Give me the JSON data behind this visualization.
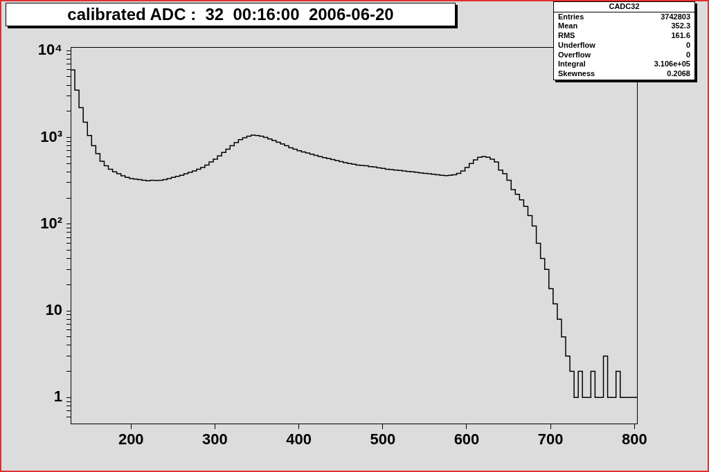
{
  "chart_data": {
    "type": "step",
    "title": "calibrated ADC :  32  00:16:00  2006-06-20",
    "x": [
      128,
      133,
      138,
      143,
      148,
      153,
      158,
      163,
      168,
      173,
      178,
      183,
      188,
      193,
      198,
      203,
      208,
      213,
      218,
      223,
      228,
      233,
      238,
      243,
      248,
      253,
      258,
      263,
      268,
      273,
      278,
      283,
      288,
      293,
      298,
      303,
      308,
      313,
      318,
      323,
      328,
      333,
      338,
      343,
      348,
      353,
      358,
      363,
      368,
      373,
      378,
      383,
      388,
      393,
      398,
      403,
      408,
      413,
      418,
      423,
      428,
      433,
      438,
      443,
      448,
      453,
      458,
      463,
      468,
      473,
      478,
      483,
      488,
      493,
      498,
      503,
      508,
      513,
      518,
      523,
      528,
      533,
      538,
      543,
      548,
      553,
      558,
      563,
      568,
      573,
      578,
      583,
      588,
      593,
      598,
      603,
      608,
      613,
      618,
      623,
      628,
      633,
      638,
      643,
      648,
      653,
      658,
      663,
      668,
      673,
      678,
      683,
      688,
      693,
      698,
      703,
      708,
      713,
      718,
      723,
      728,
      733,
      738,
      743,
      748,
      753,
      758,
      763,
      768,
      773,
      778,
      783,
      788,
      793,
      798,
      803
    ],
    "values": [
      6000,
      3500,
      2200,
      1500,
      1050,
      800,
      650,
      530,
      470,
      430,
      400,
      380,
      360,
      345,
      335,
      330,
      325,
      320,
      315,
      320,
      318,
      320,
      325,
      335,
      345,
      355,
      365,
      380,
      395,
      410,
      430,
      450,
      480,
      520,
      560,
      610,
      670,
      730,
      800,
      870,
      940,
      990,
      1030,
      1060,
      1050,
      1030,
      1000,
      960,
      920,
      880,
      840,
      800,
      760,
      730,
      700,
      680,
      660,
      640,
      620,
      600,
      585,
      570,
      555,
      540,
      525,
      510,
      500,
      490,
      480,
      475,
      470,
      460,
      455,
      445,
      440,
      430,
      425,
      420,
      415,
      410,
      405,
      400,
      395,
      390,
      385,
      380,
      375,
      370,
      365,
      362,
      365,
      370,
      385,
      410,
      450,
      500,
      550,
      590,
      600,
      590,
      560,
      520,
      420,
      380,
      320,
      250,
      220,
      190,
      160,
      125,
      95,
      60,
      40,
      30,
      18,
      12,
      8,
      5,
      3,
      2,
      1,
      2,
      1,
      1,
      2,
      1,
      1,
      3,
      1,
      1,
      2,
      1,
      1,
      1,
      1,
      1
    ],
    "color": "#000000",
    "xlim": [
      128,
      803
    ],
    "xticks": [
      200,
      300,
      400,
      500,
      600,
      700,
      800
    ],
    "log": "y",
    "ylim": [
      0.5,
      11000
    ],
    "yticks": [
      {
        "value": 0.6,
        "label": null
      },
      {
        "value": 0.7,
        "label": null
      },
      {
        "value": 0.8,
        "label": null
      },
      {
        "value": 0.9,
        "label": null
      },
      {
        "value": 1,
        "label": "1"
      },
      {
        "value": 2,
        "label": null
      },
      {
        "value": 3,
        "label": null
      },
      {
        "value": 4,
        "label": null
      },
      {
        "value": 5,
        "label": null
      },
      {
        "value": 6,
        "label": null
      },
      {
        "value": 7,
        "label": null
      },
      {
        "value": 8,
        "label": null
      },
      {
        "value": 9,
        "label": null
      },
      {
        "value": 10,
        "label": "10"
      },
      {
        "value": 20,
        "label": null
      },
      {
        "value": 30,
        "label": null
      },
      {
        "value": 40,
        "label": null
      },
      {
        "value": 50,
        "label": null
      },
      {
        "value": 60,
        "label": null
      },
      {
        "value": 70,
        "label": null
      },
      {
        "value": 80,
        "label": null
      },
      {
        "value": 90,
        "label": null
      },
      {
        "value": 100,
        "label": "10²"
      },
      {
        "value": 200,
        "label": null
      },
      {
        "value": 300,
        "label": null
      },
      {
        "value": 400,
        "label": null
      },
      {
        "value": 500,
        "label": null
      },
      {
        "value": 600,
        "label": null
      },
      {
        "value": 700,
        "label": null
      },
      {
        "value": 800,
        "label": null
      },
      {
        "value": 900,
        "label": null
      },
      {
        "value": 1000,
        "label": "10³"
      },
      {
        "value": 2000,
        "label": null
      },
      {
        "value": 3000,
        "label": null
      },
      {
        "value": 4000,
        "label": null
      },
      {
        "value": 5000,
        "label": null
      },
      {
        "value": 6000,
        "label": null
      },
      {
        "value": 7000,
        "label": null
      },
      {
        "value": 8000,
        "label": null
      },
      {
        "value": 9000,
        "label": null
      },
      {
        "value": 10000,
        "label": "10⁴"
      }
    ],
    "grid": false,
    "legend": false,
    "annotations": [
      "CADC32",
      "Entries 3742803",
      "Mean 352.3",
      "RMS 161.6",
      "Underflow 0",
      "Overflow 0",
      "Integral 3.106e+05",
      "Skewness 0.2068"
    ]
  }
}
